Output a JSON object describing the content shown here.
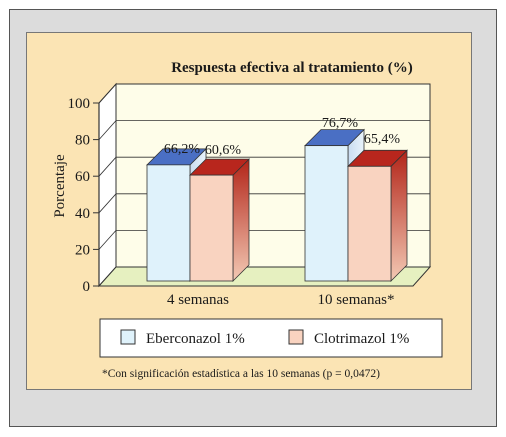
{
  "chart_data": {
    "type": "bar",
    "title": "Respuesta efectiva al tratamiento (%)",
    "ylabel": "Porcentaje",
    "xlabel": "",
    "ylim": [
      0,
      100
    ],
    "yticks": [
      0,
      20,
      40,
      60,
      80,
      100
    ],
    "ytick_labels": [
      "0",
      "20",
      "40",
      "60",
      "80",
      "100"
    ],
    "categories": [
      "4 semanas",
      "10 semanas*"
    ],
    "series": [
      {
        "name": "Eberconazol 1%",
        "values": [
          66.2,
          76.7
        ],
        "labels": [
          "66,2%",
          "76,7%"
        ],
        "color": "#dff2fb"
      },
      {
        "name": "Clotrimazol 1%",
        "values": [
          60.6,
          65.4
        ],
        "labels": [
          "60,6%",
          "65,4%"
        ],
        "color": "#f9d3c0"
      }
    ],
    "legend_position": "bottom",
    "grid": true,
    "footnote": "*Con significación estadística a las 10 semanas (p = 0,0472)",
    "colors": {
      "floor": "#e6f0c0",
      "back_wall": "#fefde9",
      "side_wall": "#ffffff",
      "series1_top": "#4a6fc4",
      "series2_top": "#b8261d"
    }
  }
}
